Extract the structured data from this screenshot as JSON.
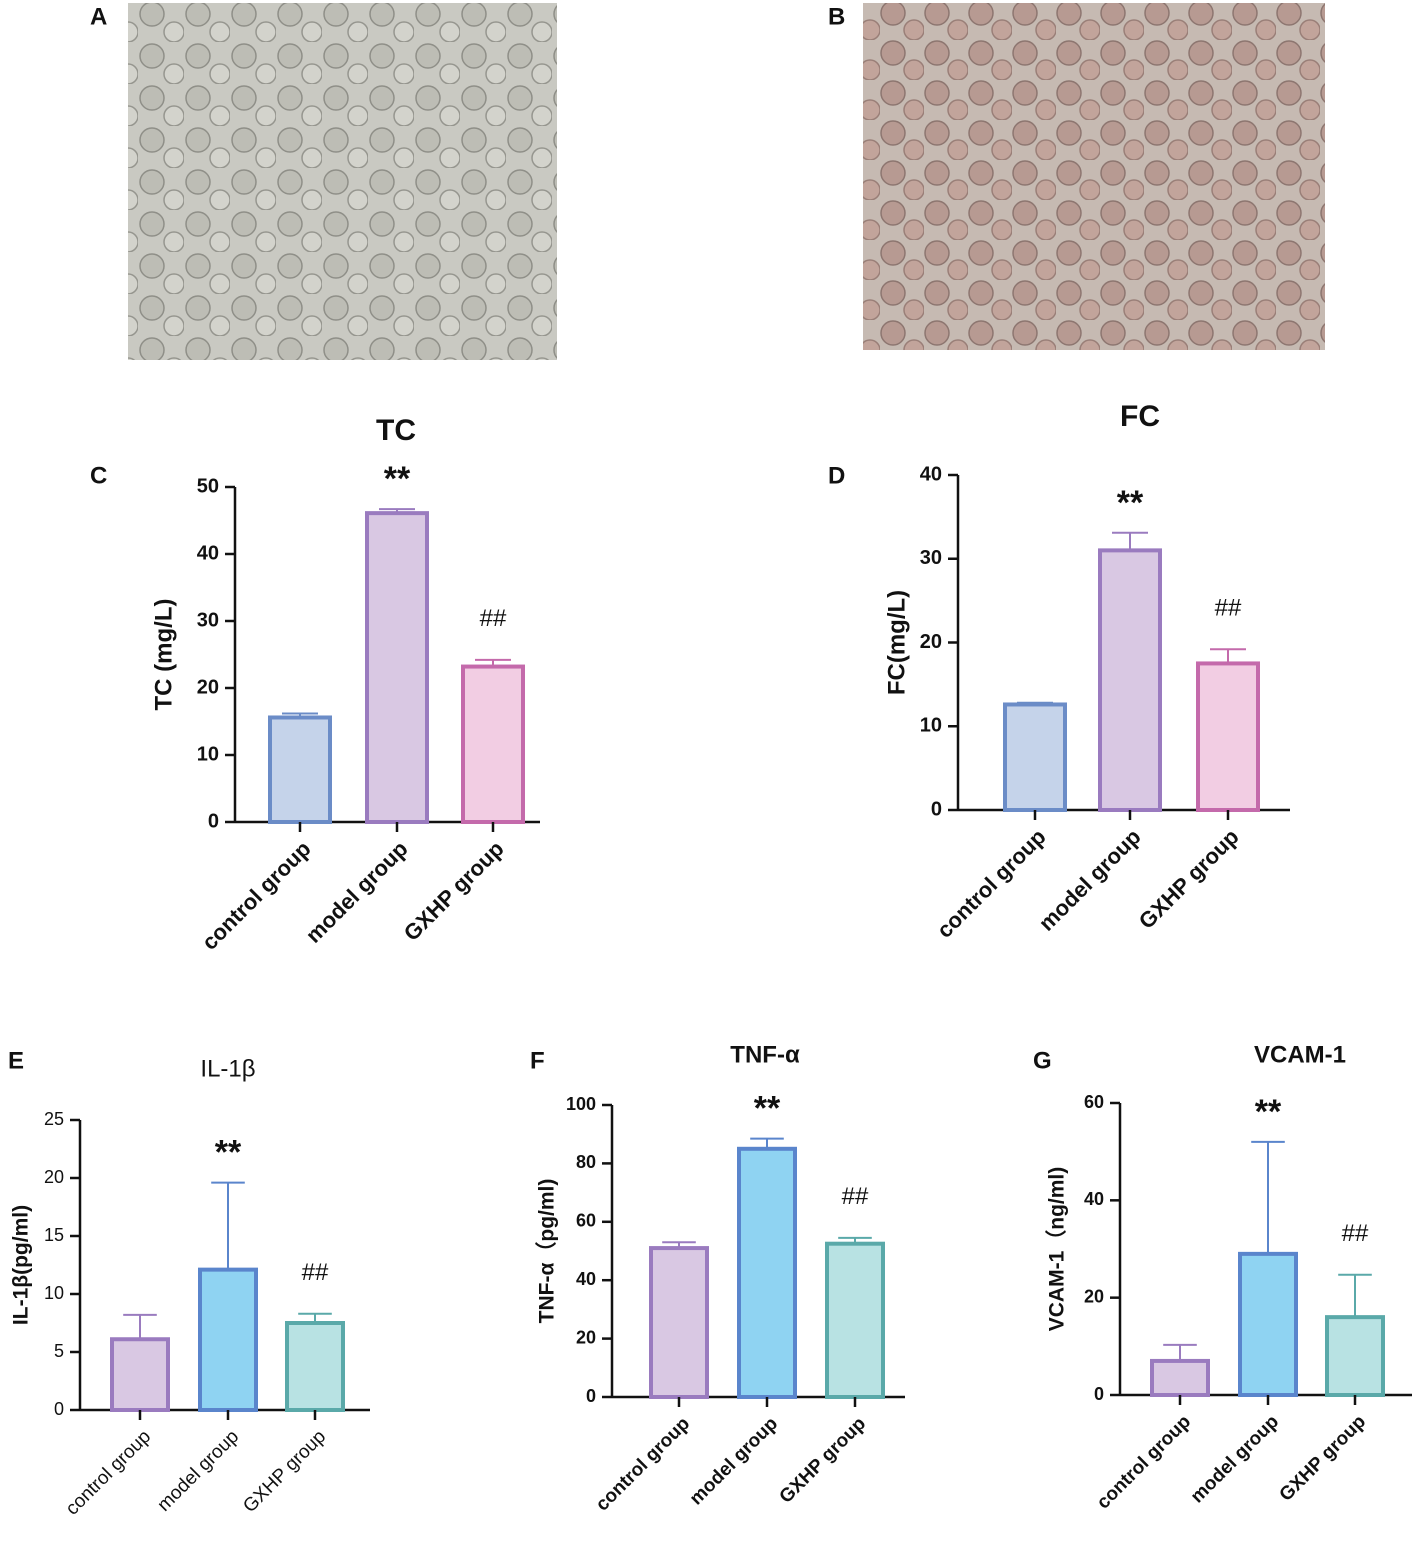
{
  "images": [
    {
      "panel_label": "A"
    },
    {
      "panel_label": "B"
    }
  ],
  "chart_data": [
    {
      "type": "bar",
      "panel_label": "C",
      "title": "TC",
      "ylabel": "TC (mg/L)",
      "categories": [
        "control group",
        "model group",
        "GXHP group"
      ],
      "values": [
        15.6,
        46.1,
        23.2
      ],
      "errors": [
        0.6,
        0.6,
        1.0
      ],
      "annotations": [
        null,
        "**",
        "##"
      ],
      "colors": [
        "#c5d3ea",
        "#d9c8e3",
        "#f2cde3"
      ],
      "edge_colors": [
        "#6b8cc7",
        "#9a7bbf",
        "#c46aab"
      ],
      "ylim": [
        0,
        50
      ],
      "yticks": [
        0,
        10,
        20,
        30,
        40,
        50
      ]
    },
    {
      "type": "bar",
      "panel_label": "D",
      "title": "FC",
      "ylabel": "FC(mg/L)",
      "categories": [
        "control group",
        "model group",
        "GXHP group"
      ],
      "values": [
        12.6,
        31.0,
        17.5
      ],
      "errors": [
        0.2,
        2.1,
        1.7
      ],
      "annotations": [
        null,
        "**",
        "##"
      ],
      "colors": [
        "#c5d3ea",
        "#d9c8e3",
        "#f2cde3"
      ],
      "edge_colors": [
        "#6b8cc7",
        "#9a7bbf",
        "#c46aab"
      ],
      "ylim": [
        0,
        40
      ],
      "yticks": [
        0,
        10,
        20,
        30,
        40
      ]
    },
    {
      "type": "bar",
      "panel_label": "E",
      "title": "IL-1β",
      "ylabel": "IL-1β(pg/ml)",
      "categories": [
        "control group",
        "model group",
        "GXHP group"
      ],
      "values": [
        6.1,
        12.1,
        7.5
      ],
      "errors": [
        2.1,
        7.5,
        0.8
      ],
      "annotations": [
        null,
        "**",
        "##"
      ],
      "colors": [
        "#d9c8e3",
        "#8fd3f2",
        "#b8e2e3"
      ],
      "edge_colors": [
        "#9a7bbf",
        "#5a85cc",
        "#5aa9a9"
      ],
      "ylim": [
        0,
        25
      ],
      "yticks": [
        0,
        5,
        10,
        15,
        20,
        25
      ]
    },
    {
      "type": "bar",
      "panel_label": "F",
      "title": "TNF-α",
      "ylabel": "TNF-α（pg/ml)",
      "categories": [
        "control group",
        "model group",
        "GXHP group"
      ],
      "values": [
        51,
        85,
        52.5
      ],
      "errors": [
        2,
        3.5,
        2
      ],
      "annotations": [
        null,
        "**",
        "##"
      ],
      "colors": [
        "#d9c8e3",
        "#8fd3f2",
        "#b8e2e3"
      ],
      "edge_colors": [
        "#9a7bbf",
        "#5a85cc",
        "#5aa9a9"
      ],
      "ylim": [
        0,
        100
      ],
      "yticks": [
        0,
        20,
        40,
        60,
        80,
        100
      ]
    },
    {
      "type": "bar",
      "panel_label": "G",
      "title": "VCAM-1",
      "ylabel": "VCAM-1（ng/ml)",
      "categories": [
        "control group",
        "model group",
        "GXHP group"
      ],
      "values": [
        7,
        29,
        16
      ],
      "errors": [
        3.3,
        23,
        8.7
      ],
      "annotations": [
        null,
        "**",
        "##"
      ],
      "colors": [
        "#d9c8e3",
        "#8fd3f2",
        "#b8e2e3"
      ],
      "edge_colors": [
        "#9a7bbf",
        "#5a85cc",
        "#5aa9a9"
      ],
      "ylim": [
        0,
        60
      ],
      "yticks": [
        0,
        20,
        40,
        60
      ]
    }
  ]
}
